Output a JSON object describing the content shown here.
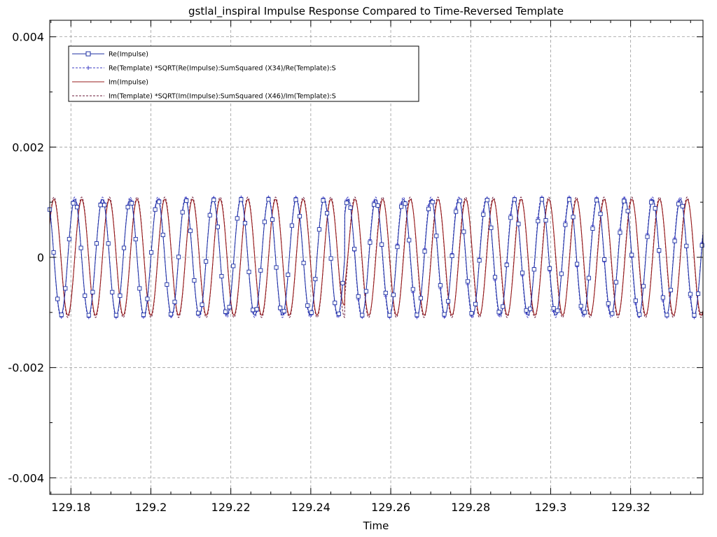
{
  "chart_data": {
    "type": "line",
    "title": "gstlal_inspiral Impulse Response Compared to Time-Reversed Template",
    "xlabel": "Time",
    "ylabel": "",
    "xlim": [
      129.1747,
      129.3381
    ],
    "ylim": [
      -0.0043,
      0.0043
    ],
    "x_ticks": [
      129.18,
      129.2,
      129.22,
      129.24,
      129.26,
      129.28,
      129.3,
      129.32
    ],
    "x_tick_labels": [
      "129.18",
      "129.2",
      "129.22",
      "129.24",
      "129.26",
      "129.28",
      "129.3",
      "129.32"
    ],
    "y_ticks": [
      0.004,
      0.002,
      0,
      -0.002,
      -0.004
    ],
    "y_tick_labels": [
      "0.004",
      "0.002",
      "0",
      "-0.002",
      "-0.004"
    ],
    "grid": true,
    "legend_position": "top-left",
    "signal": {
      "amplitude": 0.00105,
      "frequency_hz": 144.4,
      "sample_step": 0.000977,
      "phase_shift_after_event": 0.8,
      "event_time": 129.2485,
      "event_peak": 0.00123
    },
    "series": [
      {
        "name": "Re(Impulse)",
        "color": "#1c2fa3",
        "style": "solid",
        "marker": "square"
      },
      {
        "name": "Re(Template) *SQRT(Re(Impulse):SumSquared (X34)/Re(Template):S",
        "color": "#3b3bc4",
        "style": "dashed",
        "marker": "plus"
      },
      {
        "name": "Im(Impulse)",
        "color": "#9a1d1d",
        "style": "solid",
        "marker": "none"
      },
      {
        "name": "Im(Template) *SQRT(Im(Impulse):SumSquared (X46)/Im(Template):S",
        "color": "#6b1a3a",
        "style": "dashed",
        "marker": "none"
      }
    ]
  }
}
